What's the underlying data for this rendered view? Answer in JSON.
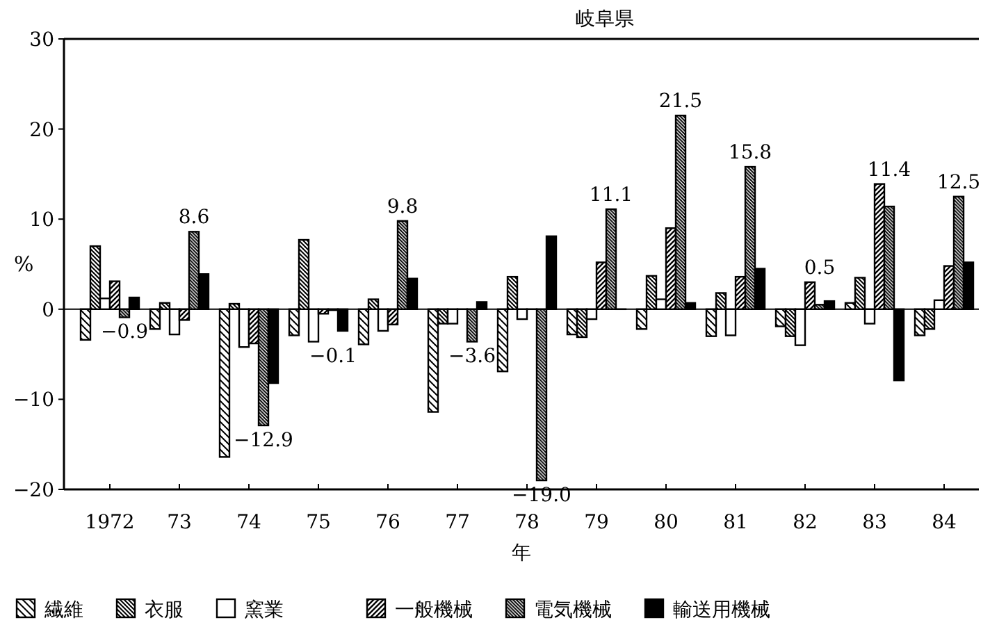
{
  "chart_data": {
    "type": "bar",
    "title": "岐阜県",
    "xlabel": "年",
    "ylabel": "%",
    "categories": [
      "1972",
      "73",
      "74",
      "75",
      "76",
      "77",
      "78",
      "79",
      "80",
      "81",
      "82",
      "83",
      "84"
    ],
    "ylim": [
      -20,
      30
    ],
    "yticks": [
      -20,
      -10,
      0,
      10,
      20,
      30
    ],
    "legend": "bottom",
    "series": [
      {
        "name": "繊維",
        "color": "#000000",
        "values": [
          -3.4,
          -2.2,
          -16.4,
          -2.9,
          -3.9,
          -11.4,
          -6.9,
          -2.8,
          -2.2,
          -3.0,
          -1.9,
          0.7,
          -2.9
        ]
      },
      {
        "name": "衣服",
        "color": "#000000",
        "values": [
          7.0,
          0.7,
          0.6,
          7.7,
          1.1,
          -1.6,
          3.6,
          -3.1,
          3.7,
          1.8,
          -3.0,
          3.5,
          -2.2
        ]
      },
      {
        "name": "窯業",
        "color": "#ffffff",
        "values": [
          1.2,
          -2.8,
          -4.2,
          -3.6,
          -2.4,
          -1.6,
          -1.1,
          -1.1,
          1.1,
          -2.9,
          -4.0,
          -1.6,
          1.0
        ]
      },
      {
        "name": "一般機械",
        "color": "#000000",
        "values": [
          3.1,
          -1.2,
          -3.8,
          -0.5,
          -1.7,
          0,
          0,
          5.2,
          9.0,
          3.6,
          3.0,
          13.9,
          4.8
        ]
      },
      {
        "name": "電気機械",
        "color": "#000000",
        "values": [
          -0.9,
          8.6,
          -12.9,
          -0.1,
          9.8,
          -3.6,
          -19.0,
          11.1,
          21.5,
          15.8,
          0.5,
          11.4,
          12.5
        ],
        "value_labels": [
          "−0.9",
          "8.6",
          "−12.9",
          "−0.1",
          "9.8",
          "−3.6",
          "−19.0",
          "11.1",
          "21.5",
          "15.8",
          "0.5",
          "11.4",
          "12.5"
        ]
      },
      {
        "name": "輸送用機械",
        "color": "#000000",
        "values": [
          1.3,
          3.9,
          -8.2,
          -2.4,
          3.4,
          0.8,
          8.1,
          0,
          0.7,
          4.5,
          0.9,
          -7.9,
          5.2
        ]
      }
    ]
  }
}
